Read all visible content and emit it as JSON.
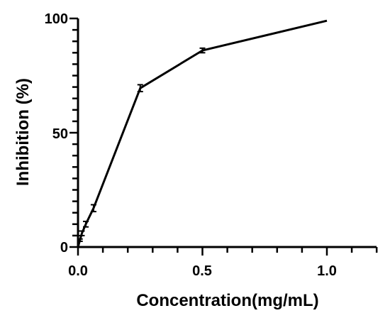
{
  "chart_data": {
    "type": "line",
    "title": "",
    "xlabel": "Concentration(mg/mL)",
    "ylabel": "Inhibition (%)",
    "xlim": [
      0,
      1.2
    ],
    "ylim": [
      0,
      100
    ],
    "x_ticks": [
      "0.0",
      "0.5",
      "1.0"
    ],
    "y_ticks": [
      "0",
      "50",
      "100"
    ],
    "grid": false,
    "legend": "none",
    "line_color": "#000000",
    "series": [
      {
        "x": [
          0,
          0.0078,
          0.0156,
          0.0313,
          0.0625,
          0.25,
          0.5,
          1.0
        ],
        "y": [
          0,
          3,
          6,
          10,
          17,
          69.5,
          86,
          99
        ],
        "error": [
          0,
          0.5,
          1,
          1.2,
          1.5,
          1.5,
          1,
          0
        ]
      }
    ]
  }
}
